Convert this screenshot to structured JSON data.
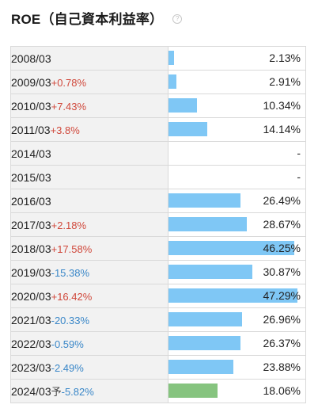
{
  "header": {
    "title": "ROE（自己資本利益率）",
    "help_icon": "help-circle-icon"
  },
  "colors": {
    "bar": "#7fc7f5",
    "forecast_bar": "#86c47f",
    "positive_delta": "#d0483b",
    "negative_delta": "#3a87c8"
  },
  "scale_max_percent": 47.29,
  "rows": [
    {
      "year": "2008/03",
      "forecast": "",
      "delta": "",
      "value": "2.13%",
      "roe": 2.13
    },
    {
      "year": "2009/03",
      "forecast": "",
      "delta": "+0.78%",
      "value": "2.91%",
      "roe": 2.91
    },
    {
      "year": "2010/03",
      "forecast": "",
      "delta": "+7.43%",
      "value": "10.34%",
      "roe": 10.34
    },
    {
      "year": "2011/03",
      "forecast": "",
      "delta": "+3.8%",
      "value": "14.14%",
      "roe": 14.14
    },
    {
      "year": "2014/03",
      "forecast": "",
      "delta": "",
      "value": "-",
      "roe": null
    },
    {
      "year": "2015/03",
      "forecast": "",
      "delta": "",
      "value": "-",
      "roe": null
    },
    {
      "year": "2016/03",
      "forecast": "",
      "delta": "",
      "value": "26.49%",
      "roe": 26.49
    },
    {
      "year": "2017/03",
      "forecast": "",
      "delta": "+2.18%",
      "value": "28.67%",
      "roe": 28.67
    },
    {
      "year": "2018/03",
      "forecast": "",
      "delta": "+17.58%",
      "value": "46.25%",
      "roe": 46.25
    },
    {
      "year": "2019/03",
      "forecast": "",
      "delta": "-15.38%",
      "value": "30.87%",
      "roe": 30.87
    },
    {
      "year": "2020/03",
      "forecast": "",
      "delta": "+16.42%",
      "value": "47.29%",
      "roe": 47.29
    },
    {
      "year": "2021/03",
      "forecast": "",
      "delta": "-20.33%",
      "value": "26.96%",
      "roe": 26.96
    },
    {
      "year": "2022/03",
      "forecast": "",
      "delta": "-0.59%",
      "value": "26.37%",
      "roe": 26.37
    },
    {
      "year": "2023/03",
      "forecast": "",
      "delta": "-2.49%",
      "value": "23.88%",
      "roe": 23.88
    },
    {
      "year": "2024/03",
      "forecast": "予",
      "delta": "-5.82%",
      "value": "18.06%",
      "roe": 18.06
    }
  ]
}
